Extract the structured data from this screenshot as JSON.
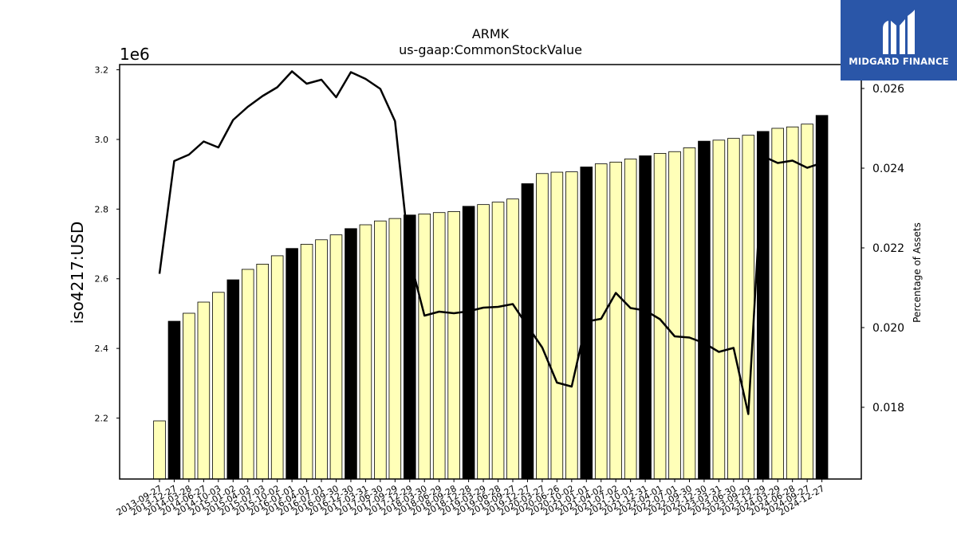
{
  "header": {
    "title_line1": "ARMK",
    "title_line2": "us-gaap:CommonStockValue"
  },
  "logo": {
    "text": "MIDGARD FINANCE",
    "background": "#2a56a8"
  },
  "chart_data": {
    "type": "bar",
    "title": "ARMK\nus-gaap:CommonStockValue",
    "ylabel": "iso4217:USD",
    "ylabel_right": "Percentage of Assets",
    "y_offset_label": "1e6",
    "ylim": [
      2025000,
      3215000
    ],
    "yticks": [
      2200000,
      2400000,
      2600000,
      2800000,
      3000000,
      3200000
    ],
    "ytick_labels": [
      "2.2",
      "2.4",
      "2.6",
      "2.8",
      "3.0",
      "3.2"
    ],
    "y2lim": [
      0.0162,
      0.0266
    ],
    "y2ticks": [
      0.018,
      0.02,
      0.022,
      0.024,
      0.026
    ],
    "y2tick_labels": [
      "0.018",
      "0.020",
      "0.022",
      "0.024",
      "0.026"
    ],
    "categories": [
      "2013-09-27",
      "2013-12-27",
      "2014-03-28",
      "2014-06-27",
      "2014-10-03",
      "2015-01-02",
      "2015-04-03",
      "2015-07-03",
      "2015-10-02",
      "2016-01-01",
      "2016-04-01",
      "2016-07-01",
      "2016-09-30",
      "2016-12-30",
      "2017-03-31",
      "2017-06-30",
      "2017-09-29",
      "2017-12-29",
      "2018-03-30",
      "2018-06-29",
      "2018-09-28",
      "2018-12-28",
      "2019-03-29",
      "2019-06-28",
      "2019-09-27",
      "2019-12-27",
      "2020-03-27",
      "2020-06-26",
      "2020-10-02",
      "2021-01-01",
      "2021-04-02",
      "2021-07-02",
      "2021-10-01",
      "2021-12-31",
      "2022-04-01",
      "2022-07-01",
      "2022-09-30",
      "2022-12-30",
      "2023-03-31",
      "2023-06-30",
      "2023-09-29",
      "2023-12-29",
      "2024-03-29",
      "2024-06-28",
      "2024-09-27",
      "2024-12-27"
    ],
    "series": [
      {
        "type": "bar",
        "values": [
          2192000,
          2478000,
          2501000,
          2533000,
          2561000,
          2597000,
          2627000,
          2642000,
          2666000,
          2687000,
          2699000,
          2712000,
          2726000,
          2744000,
          2755000,
          2766000,
          2773000,
          2783000,
          2786000,
          2790000,
          2793000,
          2808000,
          2813000,
          2820000,
          2829000,
          2873000,
          2902000,
          2906000,
          2907000,
          2921000,
          2930000,
          2935000,
          2944000,
          2953000,
          2960000,
          2965000,
          2976000,
          2995000,
          2998000,
          3003000,
          3012000,
          3023000,
          3032000,
          3036000,
          3044000,
          3069000
        ],
        "highlight": [
          false,
          true,
          false,
          false,
          false,
          true,
          false,
          false,
          false,
          true,
          false,
          false,
          false,
          true,
          false,
          false,
          false,
          true,
          false,
          false,
          false,
          true,
          false,
          false,
          false,
          true,
          false,
          false,
          false,
          true,
          false,
          false,
          false,
          true,
          false,
          false,
          false,
          true,
          false,
          false,
          false,
          true,
          false,
          false,
          false,
          true
        ]
      },
      {
        "type": "line",
        "axis": "right",
        "values": [
          0.02135,
          0.02418,
          0.02434,
          0.02467,
          0.02452,
          0.02521,
          0.02554,
          0.02581,
          0.02603,
          0.02643,
          0.02612,
          0.02622,
          0.02578,
          0.02641,
          0.02624,
          0.02599,
          0.02518,
          0.02174,
          0.0203,
          0.0204,
          0.02036,
          0.02041,
          0.0205,
          0.02052,
          0.02059,
          0.02004,
          0.0195,
          0.01862,
          0.01852,
          0.02015,
          0.02022,
          0.02087,
          0.02049,
          0.02043,
          0.02021,
          0.01978,
          0.01975,
          0.01961,
          0.01939,
          0.01949,
          0.01783,
          0.0243,
          0.02413,
          0.02419,
          0.02401,
          0.02413
        ]
      }
    ],
    "colors": {
      "bar_fill": "#ffffb8",
      "bar_highlight_fill": "#000000",
      "bar_edge": "#000000",
      "line": "#000000"
    },
    "grid": false,
    "legend": "none"
  }
}
